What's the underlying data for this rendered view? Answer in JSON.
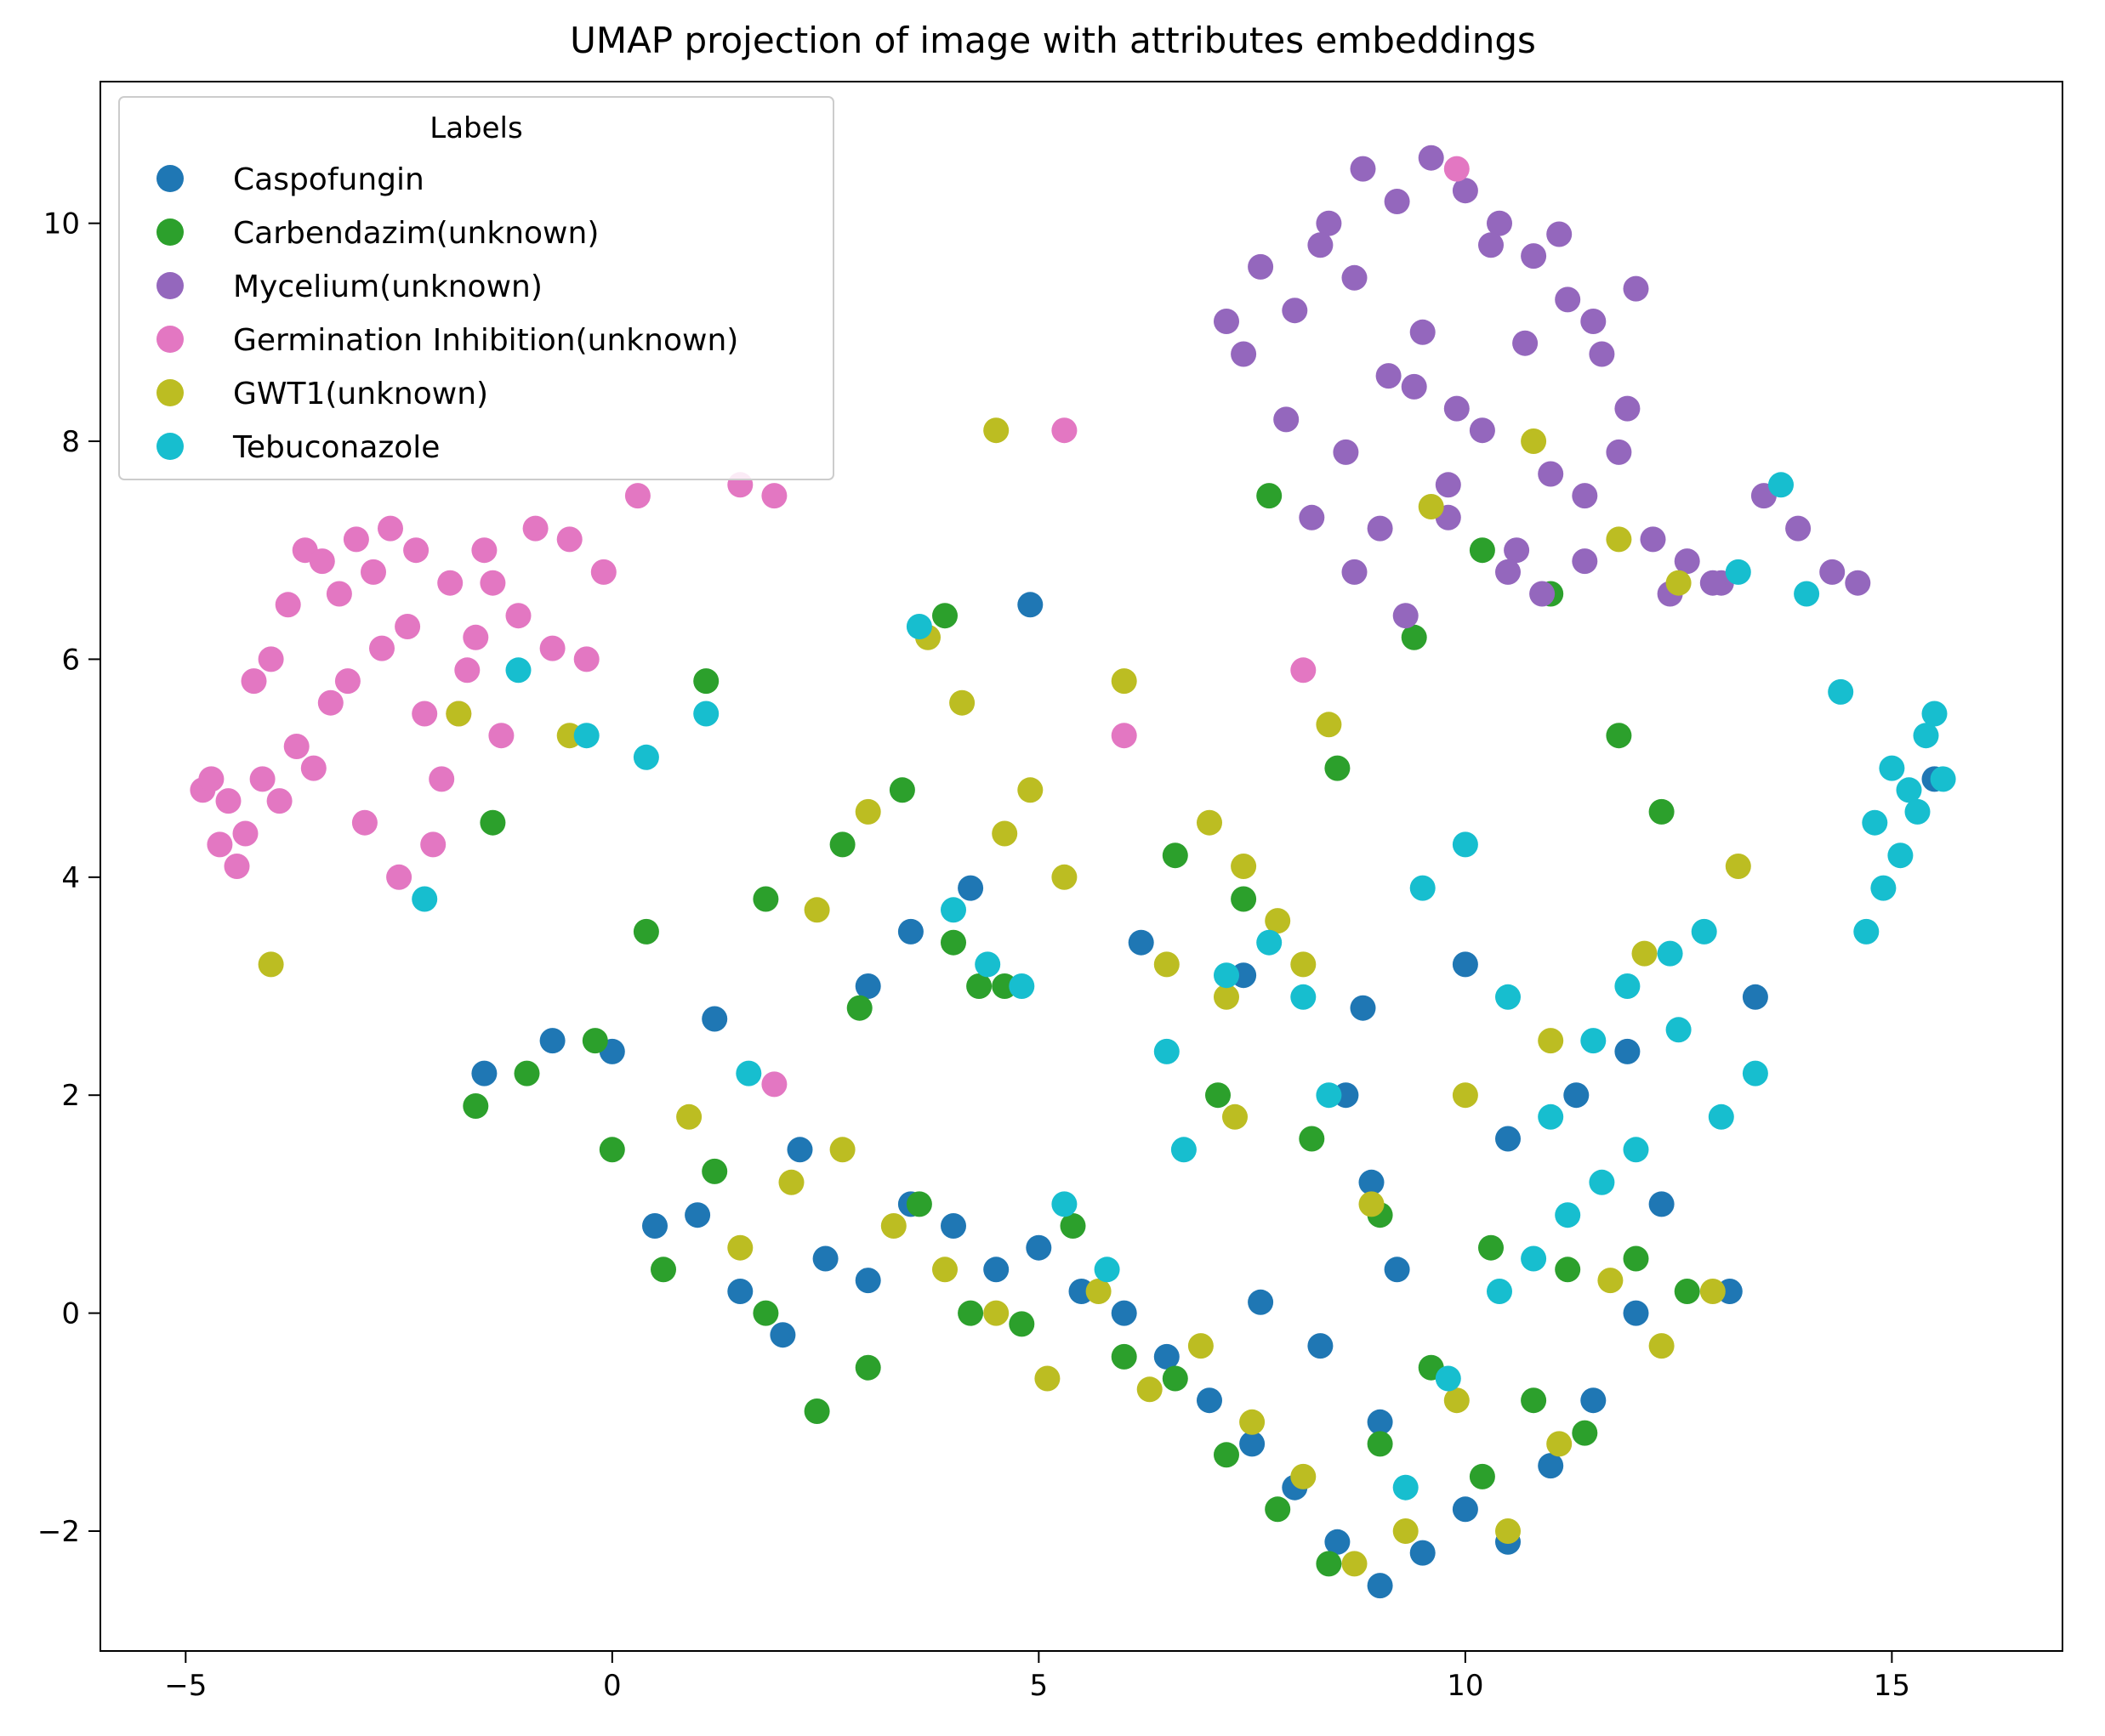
{
  "chart_data": {
    "type": "scatter",
    "title": "UMAP projection of image with attributes embeddings",
    "xlabel": "",
    "ylabel": "",
    "xlim": [
      -6.0,
      17.0
    ],
    "ylim": [
      -3.1,
      11.3
    ],
    "xticks": [
      -5,
      0,
      5,
      10,
      15
    ],
    "xtick_labels": [
      "−5",
      "0",
      "5",
      "10",
      "15"
    ],
    "yticks": [
      -2,
      0,
      2,
      4,
      6,
      8,
      10
    ],
    "ytick_labels": [
      "−2",
      "0",
      "2",
      "4",
      "6",
      "8",
      "10"
    ],
    "grid": false,
    "legend": {
      "title": "Labels",
      "position": "top-left"
    },
    "series": [
      {
        "name": "Caspofungin",
        "color": "#1f77b4",
        "x": [
          0.0,
          0.5,
          1.0,
          1.5,
          2.0,
          2.5,
          3.0,
          3.5,
          4.0,
          4.5,
          5.0,
          5.5,
          6.0,
          6.5,
          7.0,
          7.5,
          8.0,
          8.5,
          9.0,
          9.5,
          10.0,
          10.5,
          11.0,
          11.5,
          12.0,
          8.6,
          8.9,
          9.2,
          9.0,
          8.3,
          7.6,
          10.5,
          11.3,
          12.3,
          13.1,
          2.2,
          3.0,
          1.2,
          -0.7,
          -1.5,
          3.5,
          6.2,
          7.4,
          8.8,
          10.0,
          11.9,
          13.4,
          15.5,
          4.9,
          4.2
        ],
        "y": [
          2.4,
          0.8,
          0.9,
          0.2,
          -0.2,
          0.5,
          0.3,
          1.0,
          0.8,
          0.4,
          0.6,
          0.2,
          0.0,
          -0.4,
          -0.8,
          -1.2,
          -1.6,
          -2.1,
          -2.5,
          -2.2,
          -1.8,
          -2.1,
          -1.4,
          -0.8,
          0.0,
          2.0,
          1.2,
          0.4,
          -1.0,
          -0.3,
          0.1,
          1.6,
          2.0,
          1.0,
          0.2,
          1.5,
          3.0,
          2.7,
          2.5,
          2.2,
          3.5,
          3.4,
          3.1,
          2.8,
          3.2,
          2.4,
          2.9,
          4.9,
          6.5,
          3.9
        ]
      },
      {
        "name": "Carbendazim(unknown)",
        "color": "#2ca02c",
        "x": [
          0.0,
          0.6,
          1.2,
          1.8,
          2.4,
          3.0,
          3.6,
          4.2,
          4.8,
          5.4,
          6.0,
          6.6,
          7.2,
          7.8,
          8.4,
          9.0,
          9.6,
          10.2,
          10.8,
          11.4,
          12.0,
          12.6,
          2.7,
          3.4,
          4.3,
          4.0,
          4.6,
          3.9,
          -1.6,
          -1.0,
          -0.2,
          0.4,
          -1.4,
          1.1,
          1.8,
          2.9,
          7.7,
          8.5,
          9.4,
          10.2,
          11.0,
          11.8,
          12.3,
          6.6,
          7.4,
          7.1,
          8.2,
          9.0,
          10.3,
          11.2
        ],
        "y": [
          1.5,
          0.4,
          1.3,
          0.0,
          -0.9,
          -0.5,
          1.0,
          0.0,
          -0.1,
          0.8,
          -0.4,
          -0.6,
          -1.3,
          -1.8,
          -2.3,
          -1.2,
          -0.5,
          -1.5,
          -0.8,
          -1.1,
          0.5,
          0.2,
          4.3,
          4.8,
          3.0,
          3.4,
          3.0,
          6.4,
          1.9,
          2.2,
          2.5,
          3.5,
          4.5,
          5.8,
          3.8,
          2.8,
          7.5,
          5.0,
          6.2,
          7.0,
          6.6,
          5.3,
          4.6,
          4.2,
          3.8,
          2.0,
          1.6,
          0.9,
          0.6,
          0.4
        ]
      },
      {
        "name": "Mycelium(unknown)",
        "color": "#9467bd",
        "x": [
          7.2,
          7.6,
          8.0,
          8.4,
          8.8,
          9.2,
          9.6,
          10.0,
          10.4,
          10.8,
          11.2,
          11.6,
          12.0,
          7.4,
          7.9,
          8.3,
          8.7,
          9.1,
          9.5,
          9.9,
          10.3,
          10.7,
          11.1,
          11.5,
          11.9,
          8.2,
          8.6,
          9.0,
          9.4,
          9.8,
          10.2,
          10.6,
          11.0,
          11.4,
          11.8,
          12.2,
          12.6,
          13.0,
          13.5,
          13.9,
          14.3,
          14.6,
          12.4,
          12.9,
          10.9,
          11.4,
          8.7,
          9.3,
          9.8,
          10.5
        ],
        "y": [
          9.1,
          9.6,
          9.2,
          10.0,
          10.5,
          10.2,
          10.6,
          10.3,
          10.0,
          9.7,
          9.3,
          8.8,
          9.4,
          8.8,
          8.2,
          9.8,
          9.5,
          8.6,
          9.0,
          8.3,
          9.8,
          8.9,
          9.9,
          9.1,
          8.3,
          7.3,
          7.9,
          7.2,
          8.5,
          7.6,
          8.1,
          7.0,
          7.7,
          7.5,
          7.9,
          7.1,
          6.9,
          6.7,
          7.5,
          7.2,
          6.8,
          6.7,
          6.6,
          6.7,
          6.6,
          6.9,
          6.8,
          6.4,
          7.3,
          6.8
        ]
      },
      {
        "name": "Germination Inhibition(unknown)",
        "color": "#e377c2",
        "x": [
          -4.8,
          -4.6,
          -4.4,
          -4.2,
          -4.0,
          -3.8,
          -3.6,
          -3.4,
          -3.2,
          -3.0,
          -2.8,
          -2.6,
          -2.4,
          -2.2,
          -2.0,
          -1.8,
          -1.6,
          -1.4,
          -4.5,
          -4.1,
          -3.7,
          -3.3,
          -2.9,
          -2.5,
          -2.1,
          -1.7,
          -1.3,
          -0.9,
          -0.5,
          -0.1,
          0.3,
          -4.7,
          -4.3,
          -3.9,
          -3.5,
          -3.1,
          -2.7,
          -2.3,
          -1.9,
          -1.5,
          -1.1,
          -0.7,
          -0.3,
          1.5,
          1.9,
          5.3,
          6.0,
          1.9,
          8.1,
          9.9
        ],
        "y": [
          4.8,
          4.3,
          4.1,
          5.8,
          6.0,
          6.5,
          7.0,
          6.9,
          6.6,
          7.1,
          6.8,
          7.2,
          6.3,
          5.5,
          4.9,
          5.5,
          6.2,
          6.7,
          4.7,
          4.9,
          5.2,
          5.6,
          4.5,
          4.0,
          4.3,
          5.9,
          5.3,
          7.2,
          7.1,
          6.8,
          7.5,
          4.9,
          4.4,
          4.7,
          5.0,
          5.8,
          6.1,
          7.0,
          6.7,
          7.0,
          6.4,
          6.1,
          6.0,
          7.6,
          7.5,
          8.1,
          5.3,
          2.1,
          5.9,
          10.5
        ]
      },
      {
        "name": "GWT1(unknown)",
        "color": "#bcbd22",
        "x": [
          0.9,
          1.5,
          2.1,
          2.7,
          3.3,
          3.9,
          4.5,
          5.1,
          5.7,
          6.3,
          6.9,
          7.5,
          8.1,
          8.7,
          9.3,
          9.9,
          10.5,
          11.1,
          11.7,
          12.3,
          12.9,
          7.0,
          7.4,
          7.8,
          8.1,
          4.6,
          4.9,
          5.3,
          4.1,
          3.7,
          3.0,
          2.4,
          -0.5,
          -1.8,
          -4.0,
          6.0,
          6.5,
          7.2,
          8.4,
          9.6,
          10.8,
          11.8,
          12.5,
          13.2,
          7.3,
          8.9,
          10.0,
          11.0,
          12.1,
          4.5
        ],
        "y": [
          1.8,
          0.6,
          1.2,
          1.5,
          0.8,
          0.4,
          0.0,
          -0.6,
          0.2,
          -0.7,
          -0.3,
          -1.0,
          -1.5,
          -2.3,
          -2.0,
          -0.8,
          -2.0,
          -1.2,
          0.3,
          -0.3,
          0.2,
          4.5,
          4.1,
          3.6,
          3.2,
          4.4,
          4.8,
          4.0,
          5.6,
          6.2,
          4.6,
          3.7,
          5.3,
          5.5,
          3.2,
          5.8,
          3.2,
          2.9,
          5.4,
          7.4,
          8.0,
          7.1,
          6.7,
          4.1,
          1.8,
          1.0,
          2.0,
          2.5,
          3.3,
          8.1
        ]
      },
      {
        "name": "Tebuconazole",
        "color": "#17becf",
        "x": [
          14.8,
          15.0,
          15.2,
          15.4,
          14.9,
          15.1,
          15.3,
          15.5,
          14.7,
          15.6,
          14.4,
          14.0,
          13.7,
          13.2,
          12.8,
          12.4,
          11.9,
          11.5,
          11.0,
          10.5,
          10.0,
          9.5,
          12.0,
          11.6,
          11.2,
          10.8,
          10.4,
          9.8,
          9.3,
          13.4,
          13.0,
          12.5,
          7.2,
          7.7,
          8.1,
          8.4,
          6.7,
          6.5,
          4.0,
          4.4,
          4.8,
          3.6,
          5.3,
          5.8,
          -1.1,
          -0.3,
          0.4,
          1.1,
          -2.2,
          1.6
        ],
        "y": [
          4.5,
          5.0,
          4.8,
          5.3,
          3.9,
          4.2,
          4.6,
          5.5,
          3.5,
          4.9,
          5.7,
          6.6,
          7.6,
          6.8,
          3.5,
          3.3,
          3.0,
          2.5,
          1.8,
          2.9,
          4.3,
          3.9,
          1.5,
          1.2,
          0.9,
          0.5,
          0.2,
          -0.6,
          -1.6,
          2.2,
          1.8,
          2.6,
          3.1,
          3.4,
          2.9,
          2.0,
          1.5,
          2.4,
          3.7,
          3.2,
          3.0,
          6.3,
          1.0,
          0.4,
          5.9,
          5.3,
          5.1,
          5.5,
          3.8,
          2.2
        ]
      }
    ]
  }
}
